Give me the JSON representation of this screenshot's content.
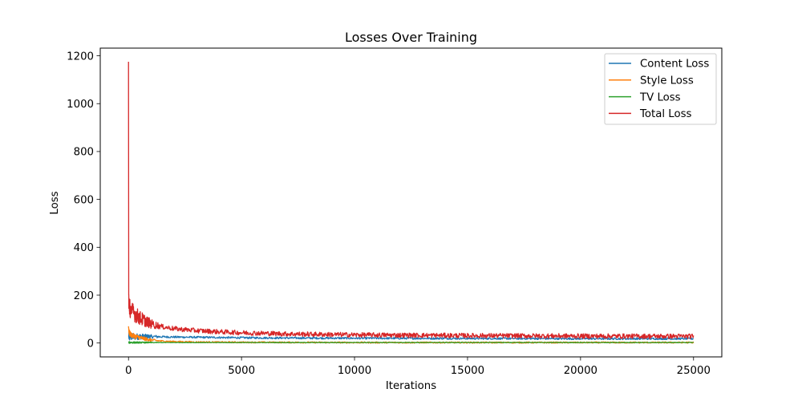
{
  "chart_data": {
    "type": "line",
    "title": "Losses Over Training",
    "xlabel": "Iterations",
    "ylabel": "Loss",
    "xlim": [
      -1250,
      26250
    ],
    "ylim": [
      -58,
      1232
    ],
    "xticks": [
      0,
      5000,
      10000,
      15000,
      20000,
      25000
    ],
    "yticks": [
      0,
      200,
      400,
      600,
      800,
      1000,
      1200
    ],
    "grid": false,
    "legend_position": "top-right",
    "series": [
      {
        "name": "Content Loss",
        "color": "#1f77b4",
        "noise": 4,
        "x": [
          0,
          20,
          50,
          100,
          200,
          400,
          700,
          1000,
          1500,
          2000,
          3000,
          4000,
          5000,
          7000,
          10000,
          15000,
          20000,
          25000
        ],
        "y": [
          30,
          27,
          25,
          25,
          26,
          27,
          27,
          27,
          26,
          25,
          24,
          23,
          22,
          21,
          20,
          19,
          18,
          18
        ]
      },
      {
        "name": "Style Loss",
        "color": "#ff7f0e",
        "noise": 3,
        "x": [
          0,
          20,
          50,
          100,
          200,
          400,
          700,
          1000,
          1500,
          2000,
          3000,
          5000,
          10000,
          15000,
          20000,
          25000
        ],
        "y": [
          70,
          50,
          40,
          35,
          30,
          25,
          18,
          12,
          8,
          6,
          4,
          3,
          2,
          2,
          2,
          2
        ]
      },
      {
        "name": "TV Loss",
        "color": "#2ca02c",
        "noise": 1,
        "x": [
          0,
          500,
          1000,
          5000,
          10000,
          15000,
          20000,
          25000
        ],
        "y": [
          2,
          2,
          2,
          2,
          2,
          2,
          2,
          2
        ]
      },
      {
        "name": "Total Loss",
        "color": "#d62728",
        "noise": 10,
        "x": [
          0,
          10,
          20,
          50,
          100,
          200,
          300,
          500,
          700,
          1000,
          1500,
          2000,
          3000,
          4000,
          5000,
          7000,
          10000,
          15000,
          20000,
          25000
        ],
        "y": [
          1175,
          200,
          165,
          150,
          140,
          130,
          120,
          105,
          95,
          80,
          68,
          60,
          52,
          47,
          43,
          38,
          34,
          31,
          29,
          28
        ]
      }
    ]
  }
}
